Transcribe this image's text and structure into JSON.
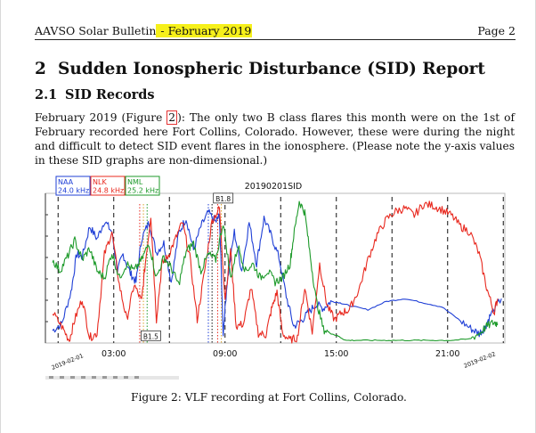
{
  "header": {
    "left_text": "AAVSO Solar Bulletin",
    "highlighted_text": " - February 2019",
    "page_label": "Page 2"
  },
  "section": {
    "number": "2",
    "title": "Sudden Ionospheric Disturbance (SID) Report"
  },
  "subsection": {
    "number": "2.1",
    "title": "SID Records"
  },
  "body": {
    "text_before_ref": "February 2019 (Figure ",
    "figure_ref": "2",
    "text_after_ref": "): The only two B class flares this month were on the 1st of February recorded here Fort Collins, Colorado. However, these were during the night and difficult to detect SID event flares in the ionosphere. (Please note the y-axis values in these SID graphs are non-dimensional.)"
  },
  "caption": "Figure 2: VLF recording at Fort Collins, Colorado.",
  "colors": {
    "highlight": "#f6f01a",
    "naa": "#1f3fd6",
    "nlk": "#e8281e",
    "nml": "#1d9a2a",
    "figure_ref_box": "#e53333"
  },
  "chart_data": {
    "type": "line",
    "title": "20190201SID",
    "x_tick_labels": [
      "03:00",
      "09:00",
      "15:00",
      "21:00"
    ],
    "x_start_label": "2019-02-01",
    "x_end_label": "2019-02-02",
    "xlim_hours": [
      0,
      24
    ],
    "ylim": [
      0,
      1
    ],
    "legend_position": "top-left",
    "vertical_markers_hours": [
      0.3,
      3.3,
      6.3,
      9.3,
      12.3,
      15.3,
      18.3,
      21.3,
      24.3
    ],
    "annotations": [
      {
        "label": "B1.5",
        "hour": 5.3,
        "level": 0.03
      },
      {
        "label": "B1.8",
        "hour": 9.2,
        "level": 1.02
      }
    ],
    "series": [
      {
        "name": "NAA",
        "label2": "24.0 kHz",
        "color": "#1f3fd6",
        "hours": [
          0.0,
          0.5,
          1.0,
          1.3,
          1.6,
          2.0,
          2.4,
          2.8,
          3.2,
          3.5,
          3.8,
          4.2,
          4.5,
          4.8,
          5.2,
          5.6,
          6.0,
          6.4,
          6.8,
          7.2,
          7.6,
          8.0,
          8.4,
          8.8,
          9.0,
          9.2,
          9.4,
          9.8,
          10.2,
          10.6,
          11.0,
          11.4,
          11.8,
          12.2,
          12.6,
          13.0,
          13.4,
          13.8,
          14.2,
          14.6,
          15.0,
          15.5,
          16.0,
          17.0,
          18.0,
          19.0,
          20.0,
          21.0,
          22.0,
          22.6,
          23.0,
          23.3,
          23.6,
          24.2
        ],
        "values": [
          0.07,
          0.12,
          0.35,
          0.62,
          0.6,
          0.82,
          0.73,
          0.86,
          0.78,
          0.5,
          0.62,
          0.48,
          0.42,
          0.73,
          0.85,
          0.63,
          0.7,
          0.42,
          0.77,
          0.88,
          0.65,
          0.82,
          0.92,
          0.85,
          0.9,
          0.05,
          0.4,
          0.78,
          0.5,
          0.85,
          0.55,
          0.88,
          0.75,
          0.6,
          0.32,
          0.1,
          0.14,
          0.2,
          0.26,
          0.23,
          0.28,
          0.27,
          0.25,
          0.22,
          0.28,
          0.3,
          0.27,
          0.24,
          0.14,
          0.08,
          0.05,
          0.09,
          0.18,
          0.3
        ]
      },
      {
        "name": "NLK",
        "label2": "24.8 kHz",
        "color": "#e8281e",
        "hours": [
          0.0,
          0.5,
          0.9,
          1.2,
          1.6,
          2.0,
          2.4,
          2.8,
          3.2,
          3.6,
          4.0,
          4.4,
          4.8,
          5.0,
          5.3,
          5.6,
          5.9,
          6.2,
          6.6,
          7.0,
          7.4,
          7.8,
          8.2,
          8.6,
          9.0,
          9.3,
          9.6,
          9.9,
          10.3,
          10.7,
          11.1,
          11.5,
          11.8,
          12.1,
          12.4,
          12.8,
          13.2,
          13.6,
          14.0,
          14.4,
          14.8,
          15.2,
          15.6,
          16.0,
          16.5,
          17.0,
          17.5,
          18.0,
          18.5,
          19.0,
          19.5,
          20.0,
          20.5,
          21.0,
          21.5,
          22.0,
          22.5,
          23.0,
          23.4,
          23.8,
          24.0
        ],
        "values": [
          0.2,
          0.1,
          0.0,
          0.15,
          0.3,
          0.02,
          0.05,
          0.62,
          0.78,
          0.4,
          0.15,
          0.4,
          0.28,
          0.55,
          0.9,
          0.15,
          0.55,
          0.6,
          0.72,
          0.85,
          0.6,
          0.15,
          0.5,
          0.86,
          0.95,
          0.3,
          0.65,
          0.1,
          0.12,
          0.38,
          0.05,
          0.04,
          0.22,
          0.35,
          0.05,
          0.0,
          0.02,
          0.38,
          0.06,
          0.55,
          0.25,
          0.15,
          0.2,
          0.22,
          0.36,
          0.58,
          0.76,
          0.87,
          0.93,
          0.95,
          0.9,
          0.98,
          0.97,
          0.94,
          0.9,
          0.82,
          0.78,
          0.62,
          0.38,
          0.2,
          0.3
        ]
      },
      {
        "name": "NML",
        "label2": "25.2 kHz",
        "color": "#1d9a2a",
        "hours": [
          0.0,
          0.4,
          0.8,
          1.2,
          1.6,
          2.0,
          2.4,
          2.8,
          3.2,
          3.6,
          4.0,
          4.4,
          4.8,
          5.2,
          5.6,
          6.0,
          6.4,
          6.8,
          7.2,
          7.6,
          8.0,
          8.4,
          8.8,
          9.2,
          9.6,
          10.0,
          10.4,
          10.8,
          11.2,
          11.6,
          12.0,
          12.4,
          12.8,
          13.0,
          13.3,
          13.6,
          13.9,
          14.2,
          14.6,
          15.0,
          15.4,
          15.8,
          16.5,
          17.5,
          18.5,
          19.5,
          20.5,
          21.5,
          22.5,
          23.0,
          23.4,
          23.8,
          24.0
        ],
        "values": [
          0.58,
          0.5,
          0.6,
          0.72,
          0.58,
          0.66,
          0.5,
          0.45,
          0.63,
          0.45,
          0.55,
          0.5,
          0.58,
          0.7,
          0.45,
          0.6,
          0.52,
          0.4,
          0.64,
          0.7,
          0.5,
          0.62,
          0.58,
          0.85,
          0.45,
          0.68,
          0.5,
          0.55,
          0.45,
          0.5,
          0.42,
          0.45,
          0.55,
          0.75,
          1.0,
          0.92,
          0.6,
          0.3,
          0.08,
          0.05,
          0.03,
          0.0,
          0.0,
          0.0,
          0.0,
          0.0,
          0.0,
          0.0,
          0.01,
          0.05,
          0.1,
          0.13,
          0.12
        ]
      }
    ]
  }
}
